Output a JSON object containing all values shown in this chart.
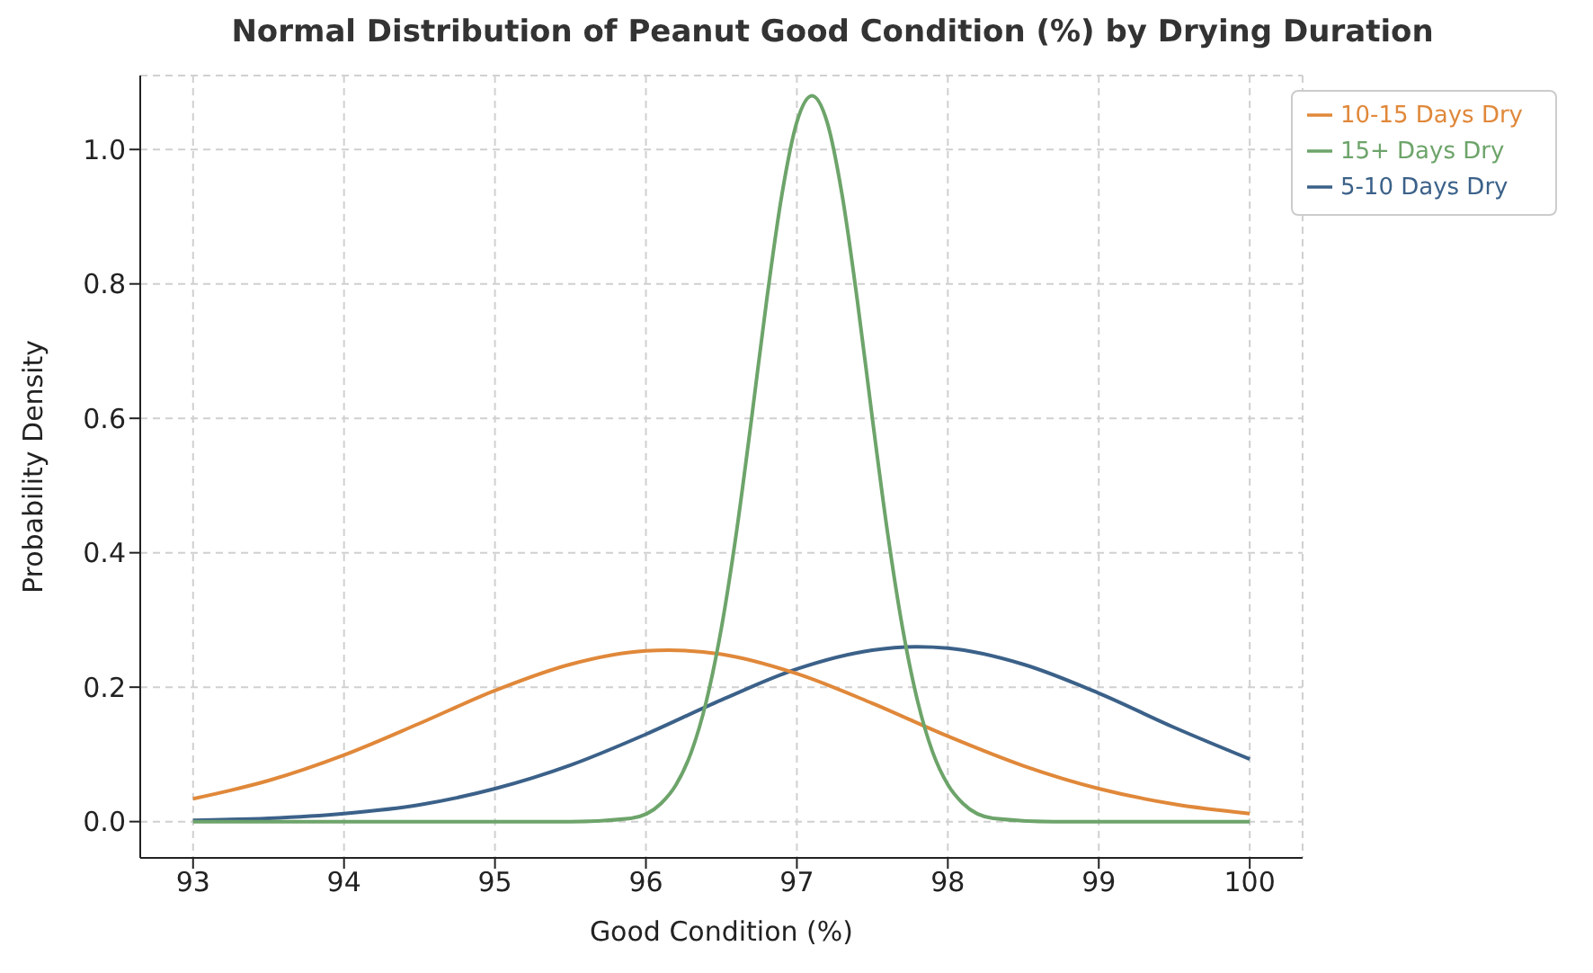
{
  "chart_data": {
    "type": "line",
    "title": "Normal Distribution of Peanut Good Condition (%) by Drying Duration",
    "xlabel": "Good Condition (%)",
    "ylabel": "Probability Density",
    "xlim": [
      92.65,
      100.35
    ],
    "xticks": [
      93,
      94,
      95,
      96,
      97,
      98,
      99,
      100
    ],
    "ylim": [
      -0.054,
      1.11
    ],
    "yticks": [
      {
        "value": 0,
        "label": "0.0"
      },
      {
        "value": 0.2,
        "label": "0.2"
      },
      {
        "value": 0.4,
        "label": "0.4"
      },
      {
        "value": 0.6,
        "label": "0.6"
      },
      {
        "value": 0.8,
        "label": "0.8"
      },
      {
        "value": 1,
        "label": "1.0"
      }
    ],
    "grid": true,
    "legend": "top right",
    "line_style": "solid",
    "marker": "none",
    "series": [
      {
        "name": "5-10 Days Dry",
        "color": "#3b6189",
        "x": [
          93,
          93.5,
          94,
          94.5,
          95,
          95.5,
          96,
          96.5,
          97,
          97.5,
          97.8,
          98,
          98.5,
          99,
          99.5,
          100
        ],
        "values": [
          0.002,
          0.005,
          0.012,
          0.025,
          0.049,
          0.084,
          0.13,
          0.181,
          0.227,
          0.255,
          0.26,
          0.258,
          0.234,
          0.191,
          0.14,
          0.093
        ]
      },
      {
        "name": "10-15 Days Dry",
        "color": "#e0883a",
        "x": [
          93,
          93.5,
          94,
          94.5,
          95,
          95.5,
          96,
          96.15,
          96.5,
          97,
          97.5,
          98,
          98.5,
          99,
          99.5,
          100
        ],
        "values": [
          0.034,
          0.061,
          0.099,
          0.146,
          0.195,
          0.234,
          0.254,
          0.255,
          0.249,
          0.22,
          0.176,
          0.127,
          0.083,
          0.049,
          0.026,
          0.012
        ]
      },
      {
        "name": "15+ Days Dry",
        "color": "#6da46a",
        "x": [
          93,
          95.5,
          95.9,
          96.1,
          96.2,
          96.3,
          96.4,
          96.5,
          96.6,
          96.7,
          96.8,
          96.9,
          97,
          97.1,
          97.2,
          97.3,
          97.4,
          97.5,
          97.6,
          97.7,
          97.8,
          97.9,
          98,
          98.1,
          98.3,
          98.7,
          100
        ],
        "values": [
          0,
          0,
          0.005,
          0.027,
          0.055,
          0.103,
          0.179,
          0.288,
          0.431,
          0.6,
          0.776,
          0.932,
          1.041,
          1.08,
          1.041,
          0.932,
          0.776,
          0.6,
          0.431,
          0.288,
          0.179,
          0.103,
          0.055,
          0.027,
          0.005,
          0,
          0
        ]
      }
    ]
  }
}
